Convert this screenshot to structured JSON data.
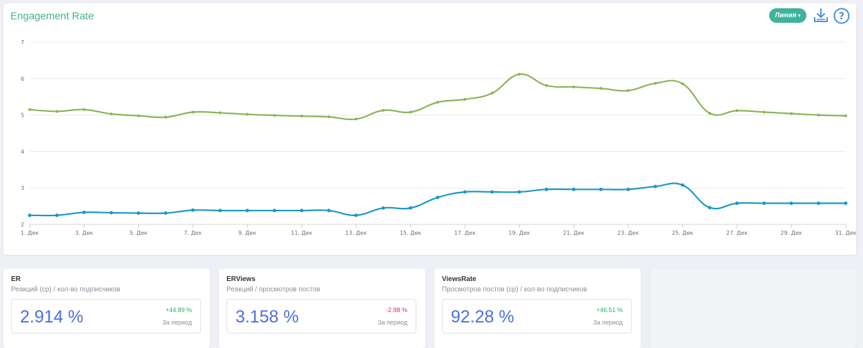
{
  "chart_data": {
    "type": "line",
    "title": "Engagement Rate",
    "ylim": [
      2,
      7
    ],
    "yticks": [
      2,
      3,
      4,
      5,
      6,
      7
    ],
    "grid": true,
    "x": [
      "1. Дек",
      "2. Дек",
      "3. Дек",
      "4. Дек",
      "5. Дек",
      "6. Дек",
      "7. Дек",
      "8. Дек",
      "9. Дек",
      "10. Дек",
      "11. Дек",
      "12. Дек",
      "13. Дек",
      "14. Дек",
      "15. Дек",
      "16. Дек",
      "17. Дек",
      "18. Дек",
      "19. Дек",
      "20. Дек",
      "21. Дек",
      "22. Дек",
      "23. Дек",
      "24. Дек",
      "25. Дек",
      "26. Дек",
      "27. Дек",
      "28. Дек",
      "29. Дек",
      "30. Дек",
      "31. Дек"
    ],
    "xticks": [
      "1. Дек",
      "3. Дек",
      "5. Дек",
      "7. Дек",
      "9. Дек",
      "11. Дек",
      "13. Дек",
      "15. Дек",
      "17. Дек",
      "19. Дек",
      "21. Дек",
      "23. Дек",
      "25. Дек",
      "27. Дек",
      "29. Дек",
      "31. Дек"
    ],
    "series": [
      {
        "color": "#8db356",
        "values": [
          5.15,
          5.1,
          5.15,
          5.03,
          4.98,
          4.94,
          5.08,
          5.06,
          5.02,
          4.99,
          4.97,
          4.95,
          4.89,
          5.13,
          5.08,
          5.35,
          5.43,
          5.6,
          6.12,
          5.81,
          5.77,
          5.73,
          5.67,
          5.87,
          5.86,
          5.05,
          5.12,
          5.08,
          5.04,
          5.0,
          4.98
        ]
      },
      {
        "color": "#1c98c7",
        "values": [
          2.25,
          2.25,
          2.33,
          2.32,
          2.31,
          2.31,
          2.39,
          2.38,
          2.38,
          2.38,
          2.38,
          2.38,
          2.25,
          2.45,
          2.45,
          2.74,
          2.89,
          2.89,
          2.89,
          2.96,
          2.96,
          2.96,
          2.96,
          3.04,
          3.08,
          2.46,
          2.58,
          2.58,
          2.58,
          2.58,
          2.58
        ]
      }
    ]
  },
  "toolbar": {
    "type_label": "Линия",
    "download_icon": "download-icon",
    "help_icon": "help-icon"
  },
  "stats": [
    {
      "name": "ER",
      "desc": "Реакций (ср) / кол-во подписчиков",
      "value": "2.914 %",
      "change": "+44.89 %",
      "period": "За период",
      "change_color": "#27ae60"
    },
    {
      "name": "ERViews",
      "desc": "Реакций / просмотров постов",
      "value": "3.158 %",
      "change": "-2.98 %",
      "period": "За период",
      "change_color": "#e0245e"
    },
    {
      "name": "ViewsRate",
      "desc": "Просмотров постов (ср) / кол-во подписчиков",
      "value": "92.28 %",
      "change": "+46.51 %",
      "period": "За период",
      "change_color": "#27ae60"
    }
  ]
}
